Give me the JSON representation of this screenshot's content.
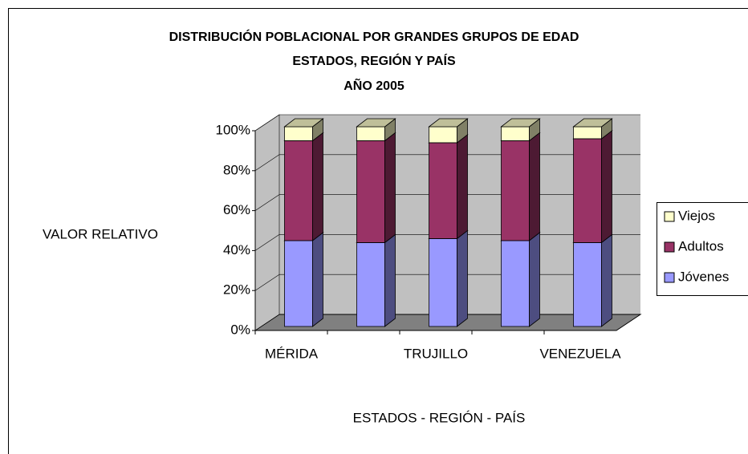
{
  "chart_data": {
    "type": "bar3d_stacked",
    "title": [
      "DISTRIBUCIÓN POBLACIONAL POR GRANDES GRUPOS DE EDAD",
      "ESTADOS, REGIÓN Y PAÍS",
      "AÑO 2005"
    ],
    "y_label": "VALOR RELATIVO",
    "x_label": "ESTADOS - REGIÓN - PAÍS",
    "categories": [
      "MÉRIDA",
      null,
      "TRUJILLO",
      null,
      "VENEZUELA"
    ],
    "series": [
      {
        "name": "Jóvenes",
        "color": "#9999ff",
        "values": [
          43,
          42,
          44,
          43,
          42
        ]
      },
      {
        "name": "Adultos",
        "color": "#993366",
        "values": [
          50,
          51,
          48,
          50,
          52
        ]
      },
      {
        "name": "Viejos",
        "color": "#ffffcc",
        "values": [
          7,
          7,
          8,
          7,
          6
        ]
      }
    ],
    "ylim": [
      0,
      100
    ],
    "yticks": [
      {
        "value": 0,
        "label": "0%"
      },
      {
        "value": 20,
        "label": "20%"
      },
      {
        "value": 40,
        "label": "40%"
      },
      {
        "value": 60,
        "label": "60%"
      },
      {
        "value": 80,
        "label": "80%"
      },
      {
        "value": 100,
        "label": "100%"
      }
    ],
    "grid": true,
    "legend": "right"
  }
}
